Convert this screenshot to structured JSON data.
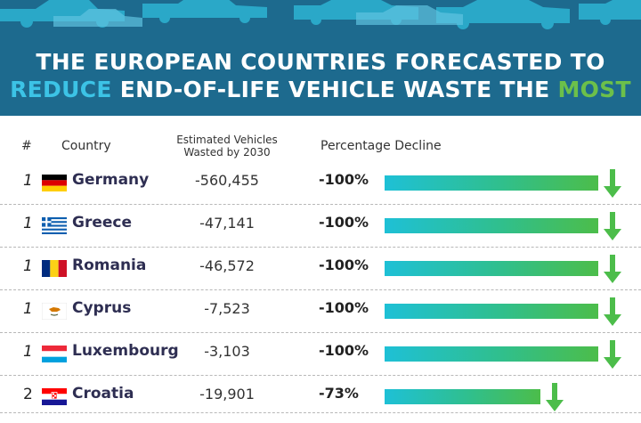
{
  "title": {
    "line1": "THE EUROPEAN COUNTRIES FORECASTED TO",
    "line2_part1": "REDUCE",
    "line2_part2": " END-OF-LIFE VEHICLE WASTE THE ",
    "line2_part3": "MOST"
  },
  "columns": {
    "rank": "#",
    "country": "Country",
    "vehicles_line1": "Estimated Vehicles",
    "vehicles_line2": "Wasted by 2030",
    "decline": "Percentage Decline"
  },
  "colors": {
    "header_bg": "#1d6a8e",
    "highlight_blue": "#3cc3e6",
    "highlight_green": "#6cc04a",
    "arrow_green": "#4cbd4a"
  },
  "chart_data": {
    "type": "table",
    "rows": [
      {
        "rank": "1",
        "country": "Germany",
        "flag": "germany-flag-icon",
        "vehicles": "-560,455",
        "decline_label": "-100%",
        "decline": 100
      },
      {
        "rank": "1",
        "country": "Greece",
        "flag": "greece-flag-icon",
        "vehicles": "-47,141",
        "decline_label": "-100%",
        "decline": 100
      },
      {
        "rank": "1",
        "country": "Romania",
        "flag": "romania-flag-icon",
        "vehicles": "-46,572",
        "decline_label": "-100%",
        "decline": 100
      },
      {
        "rank": "1",
        "country": "Cyprus",
        "flag": "cyprus-flag-icon",
        "vehicles": "-7,523",
        "decline_label": "-100%",
        "decline": 100
      },
      {
        "rank": "1",
        "country": "Luxembourg",
        "flag": "luxembourg-flag-icon",
        "vehicles": "-3,103",
        "decline_label": "-100%",
        "decline": 100
      },
      {
        "rank": "2",
        "country": "Croatia",
        "flag": "croatia-flag-icon",
        "vehicles": "-19,901",
        "decline_label": "-73%",
        "decline": 73
      }
    ]
  }
}
